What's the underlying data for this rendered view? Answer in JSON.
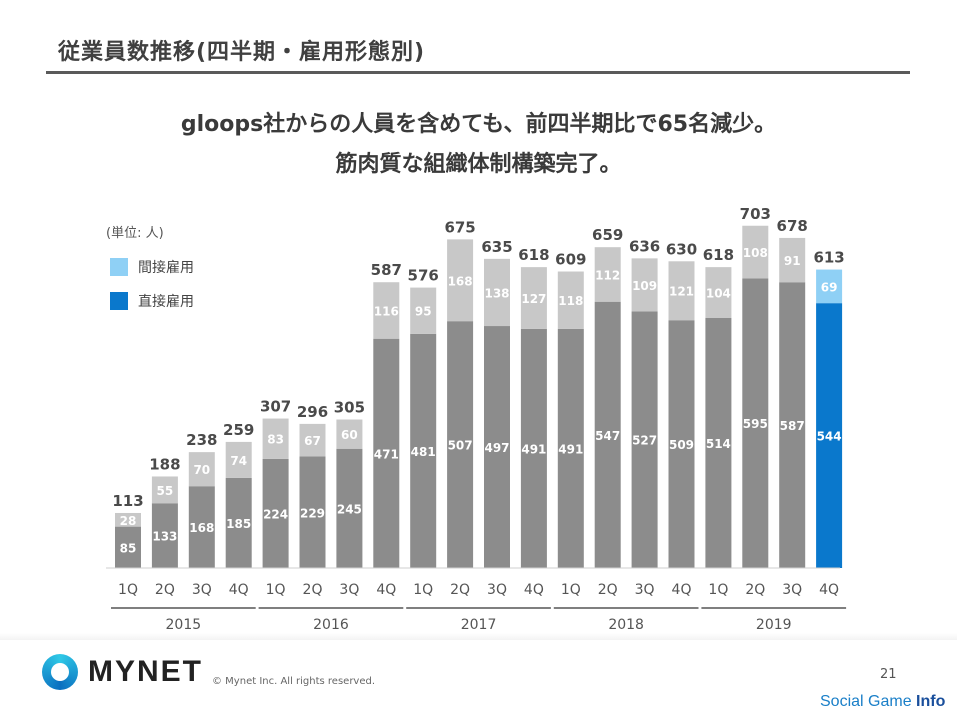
{
  "title": "従業員数推移(四半期・雇用形態別)",
  "headline": {
    "line1": "gloops社からの人員を含めても、前四半期比で65名減少。",
    "line2": "筋肉質な組織体制構築完了。"
  },
  "colors": {
    "direct": "#8c8c8c",
    "indirect": "#c8c8c8",
    "direct_highlight": "#0a78cc",
    "indirect_highlight": "#8fd0f5",
    "legend_indirect": "#8fd0f5",
    "legend_direct": "#0a78cc"
  },
  "chart_data": {
    "type": "bar",
    "stacked": true,
    "unit_label": "(単位: 人)",
    "categories": [
      "1Q",
      "2Q",
      "3Q",
      "4Q",
      "1Q",
      "2Q",
      "3Q",
      "4Q",
      "1Q",
      "2Q",
      "3Q",
      "4Q",
      "1Q",
      "2Q",
      "3Q",
      "4Q",
      "1Q",
      "2Q",
      "3Q",
      "4Q"
    ],
    "year_groups": [
      {
        "label": "2015",
        "start": 0,
        "end": 3
      },
      {
        "label": "2016",
        "start": 4,
        "end": 7
      },
      {
        "label": "2017",
        "start": 8,
        "end": 11
      },
      {
        "label": "2018",
        "start": 12,
        "end": 15
      },
      {
        "label": "2019",
        "start": 16,
        "end": 19
      }
    ],
    "series": [
      {
        "name": "直接雇用",
        "values": [
          85,
          133,
          168,
          185,
          224,
          229,
          245,
          471,
          481,
          507,
          497,
          491,
          491,
          547,
          527,
          509,
          514,
          595,
          587,
          544
        ]
      },
      {
        "name": "間接雇用",
        "values": [
          28,
          55,
          70,
          74,
          83,
          67,
          60,
          116,
          95,
          168,
          138,
          127,
          118,
          112,
          109,
          121,
          104,
          108,
          91,
          69
        ]
      }
    ],
    "totals": [
      113,
      188,
      238,
      259,
      307,
      296,
      305,
      587,
      576,
      675,
      635,
      618,
      609,
      659,
      636,
      630,
      618,
      703,
      678,
      613
    ],
    "highlight_index": 19,
    "legend": [
      "間接雇用",
      "直接雇用"
    ],
    "ylim": [
      0,
      760
    ]
  },
  "footer": {
    "logo": "MYNET",
    "copyright": "© Mynet Inc. All rights reserved.",
    "page": "21",
    "watermark_a": "Social Game ",
    "watermark_b": "Info"
  }
}
